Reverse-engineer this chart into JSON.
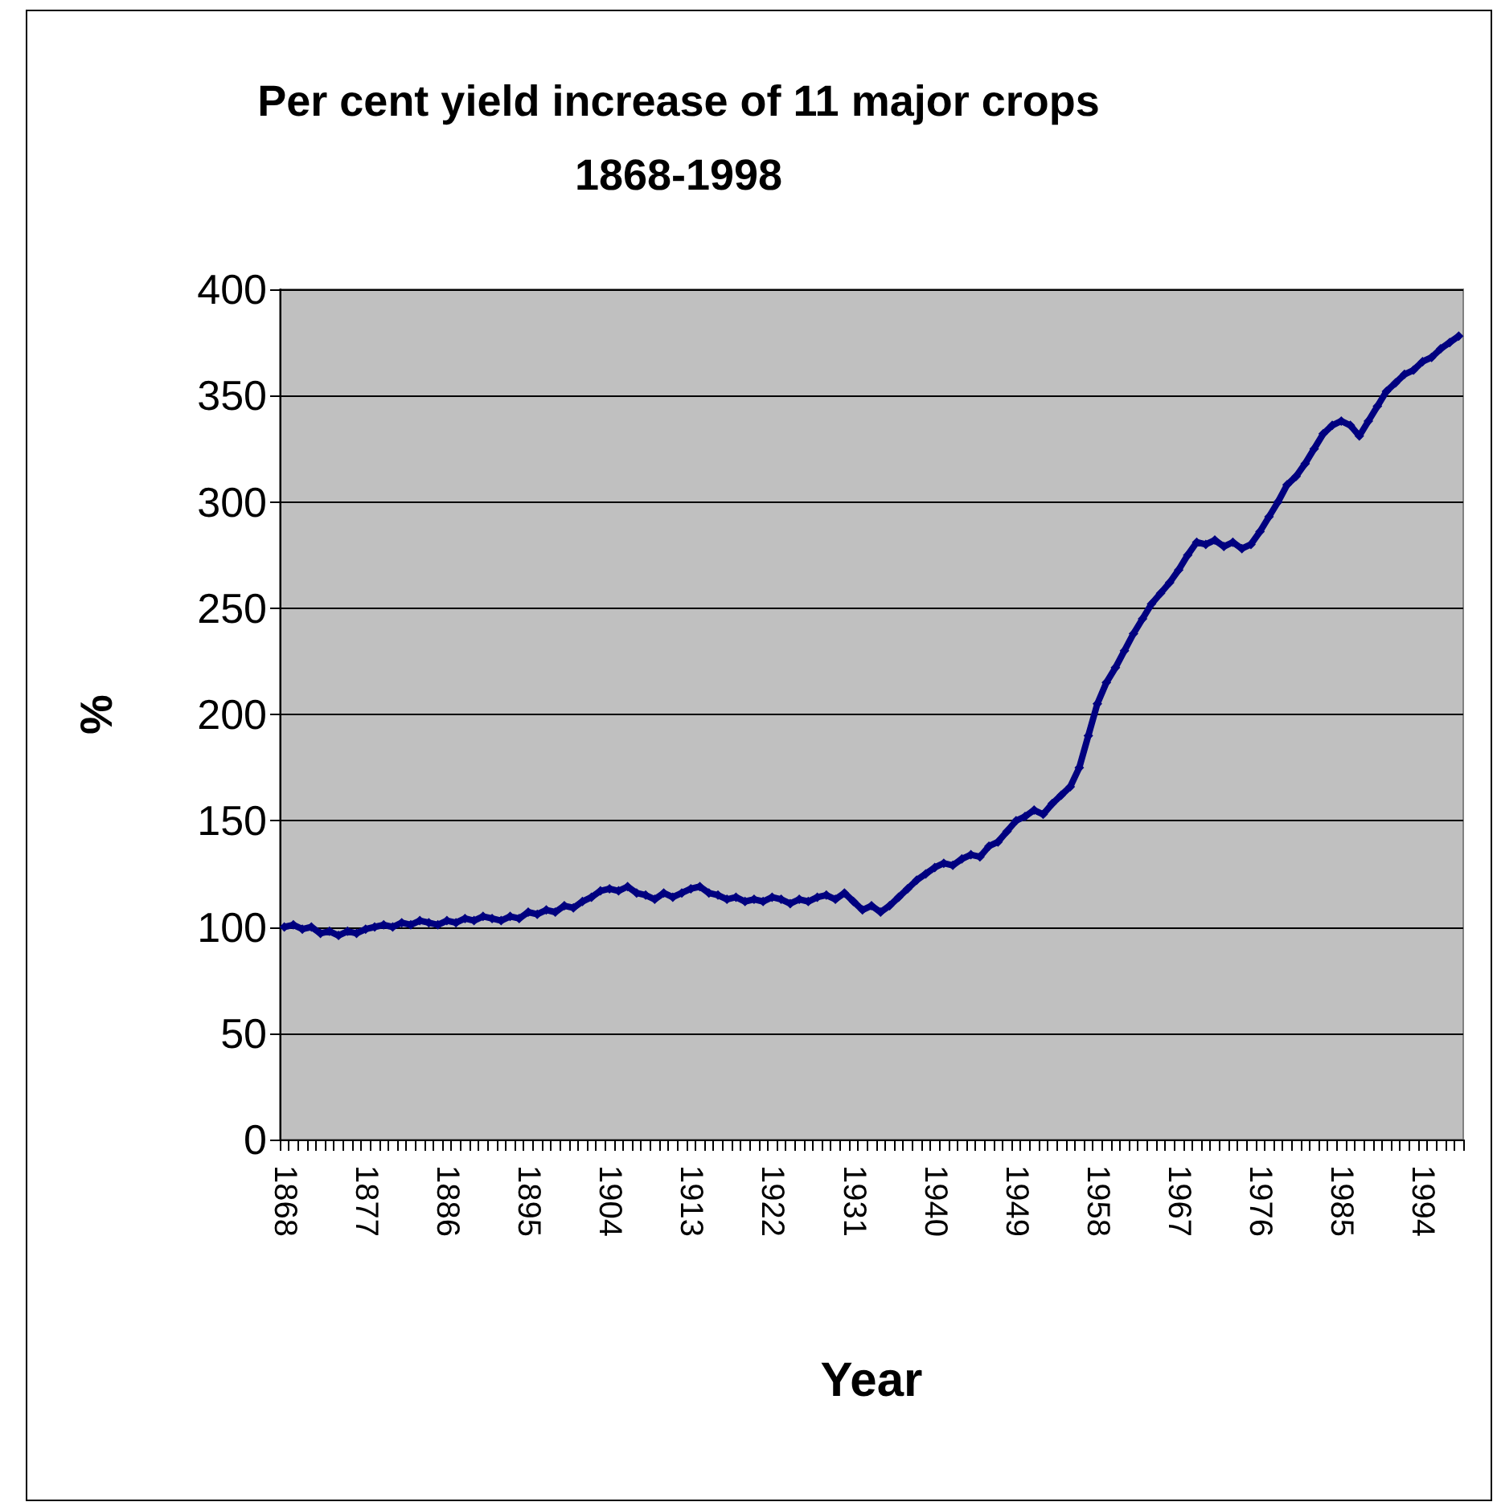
{
  "chart_data": {
    "type": "line",
    "title": "Per cent yield increase of 11 major crops\n1868-1998",
    "xlabel": "Year",
    "ylabel": "%",
    "categories": [
      "1868",
      null,
      null,
      null,
      null,
      null,
      null,
      null,
      null,
      "1877",
      null,
      null,
      null,
      null,
      null,
      null,
      null,
      null,
      "1886",
      null,
      null,
      null,
      null,
      null,
      null,
      null,
      null,
      "1895",
      null,
      null,
      null,
      null,
      null,
      null,
      null,
      null,
      "1904",
      null,
      null,
      null,
      null,
      null,
      null,
      null,
      null,
      "1913",
      null,
      null,
      null,
      null,
      null,
      null,
      null,
      null,
      "1922",
      null,
      null,
      null,
      null,
      null,
      null,
      null,
      null,
      "1931",
      null,
      null,
      null,
      null,
      null,
      null,
      null,
      null,
      "1940",
      null,
      null,
      null,
      null,
      null,
      null,
      null,
      null,
      "1949",
      null,
      null,
      null,
      null,
      null,
      null,
      null,
      null,
      "1958",
      null,
      null,
      null,
      null,
      null,
      null,
      null,
      null,
      "1967",
      null,
      null,
      null,
      null,
      null,
      null,
      null,
      null,
      "1976",
      null,
      null,
      null,
      null,
      null,
      null,
      null,
      null,
      "1985",
      null,
      null,
      null,
      null,
      null,
      null,
      null,
      null,
      "1994",
      null,
      null,
      null,
      null
    ],
    "series": [
      {
        "color": "#000080",
        "values": [
          100,
          101,
          99,
          100,
          97,
          98,
          96,
          98,
          97,
          99,
          100,
          101,
          100,
          102,
          101,
          103,
          102,
          101,
          103,
          102,
          104,
          103,
          105,
          104,
          103,
          105,
          104,
          107,
          106,
          108,
          107,
          110,
          109,
          112,
          114,
          117,
          118,
          117,
          119,
          116,
          115,
          113,
          116,
          114,
          116,
          118,
          119,
          116,
          115,
          113,
          114,
          112,
          113,
          112,
          114,
          113,
          111,
          113,
          112,
          114,
          115,
          113,
          116,
          112,
          108,
          110,
          107,
          110,
          114,
          118,
          122,
          125,
          128,
          130,
          129,
          132,
          134,
          133,
          138,
          140,
          145,
          150,
          152,
          155,
          153,
          158,
          162,
          166,
          175,
          190,
          205,
          215,
          222,
          230,
          238,
          245,
          252,
          257,
          262,
          268,
          275,
          281,
          280,
          282,
          279,
          281,
          278,
          280,
          286,
          293,
          300,
          308,
          312,
          318,
          325,
          332,
          336,
          338,
          336,
          331,
          338,
          345,
          352,
          356,
          360,
          362,
          366,
          368,
          372,
          375,
          378
        ]
      }
    ],
    "ylim": [
      0,
      400
    ],
    "yticks": [
      0,
      50,
      100,
      150,
      200,
      250,
      300,
      350,
      400
    ],
    "grid": "y",
    "marker": "diamond",
    "line_style": "solid"
  }
}
